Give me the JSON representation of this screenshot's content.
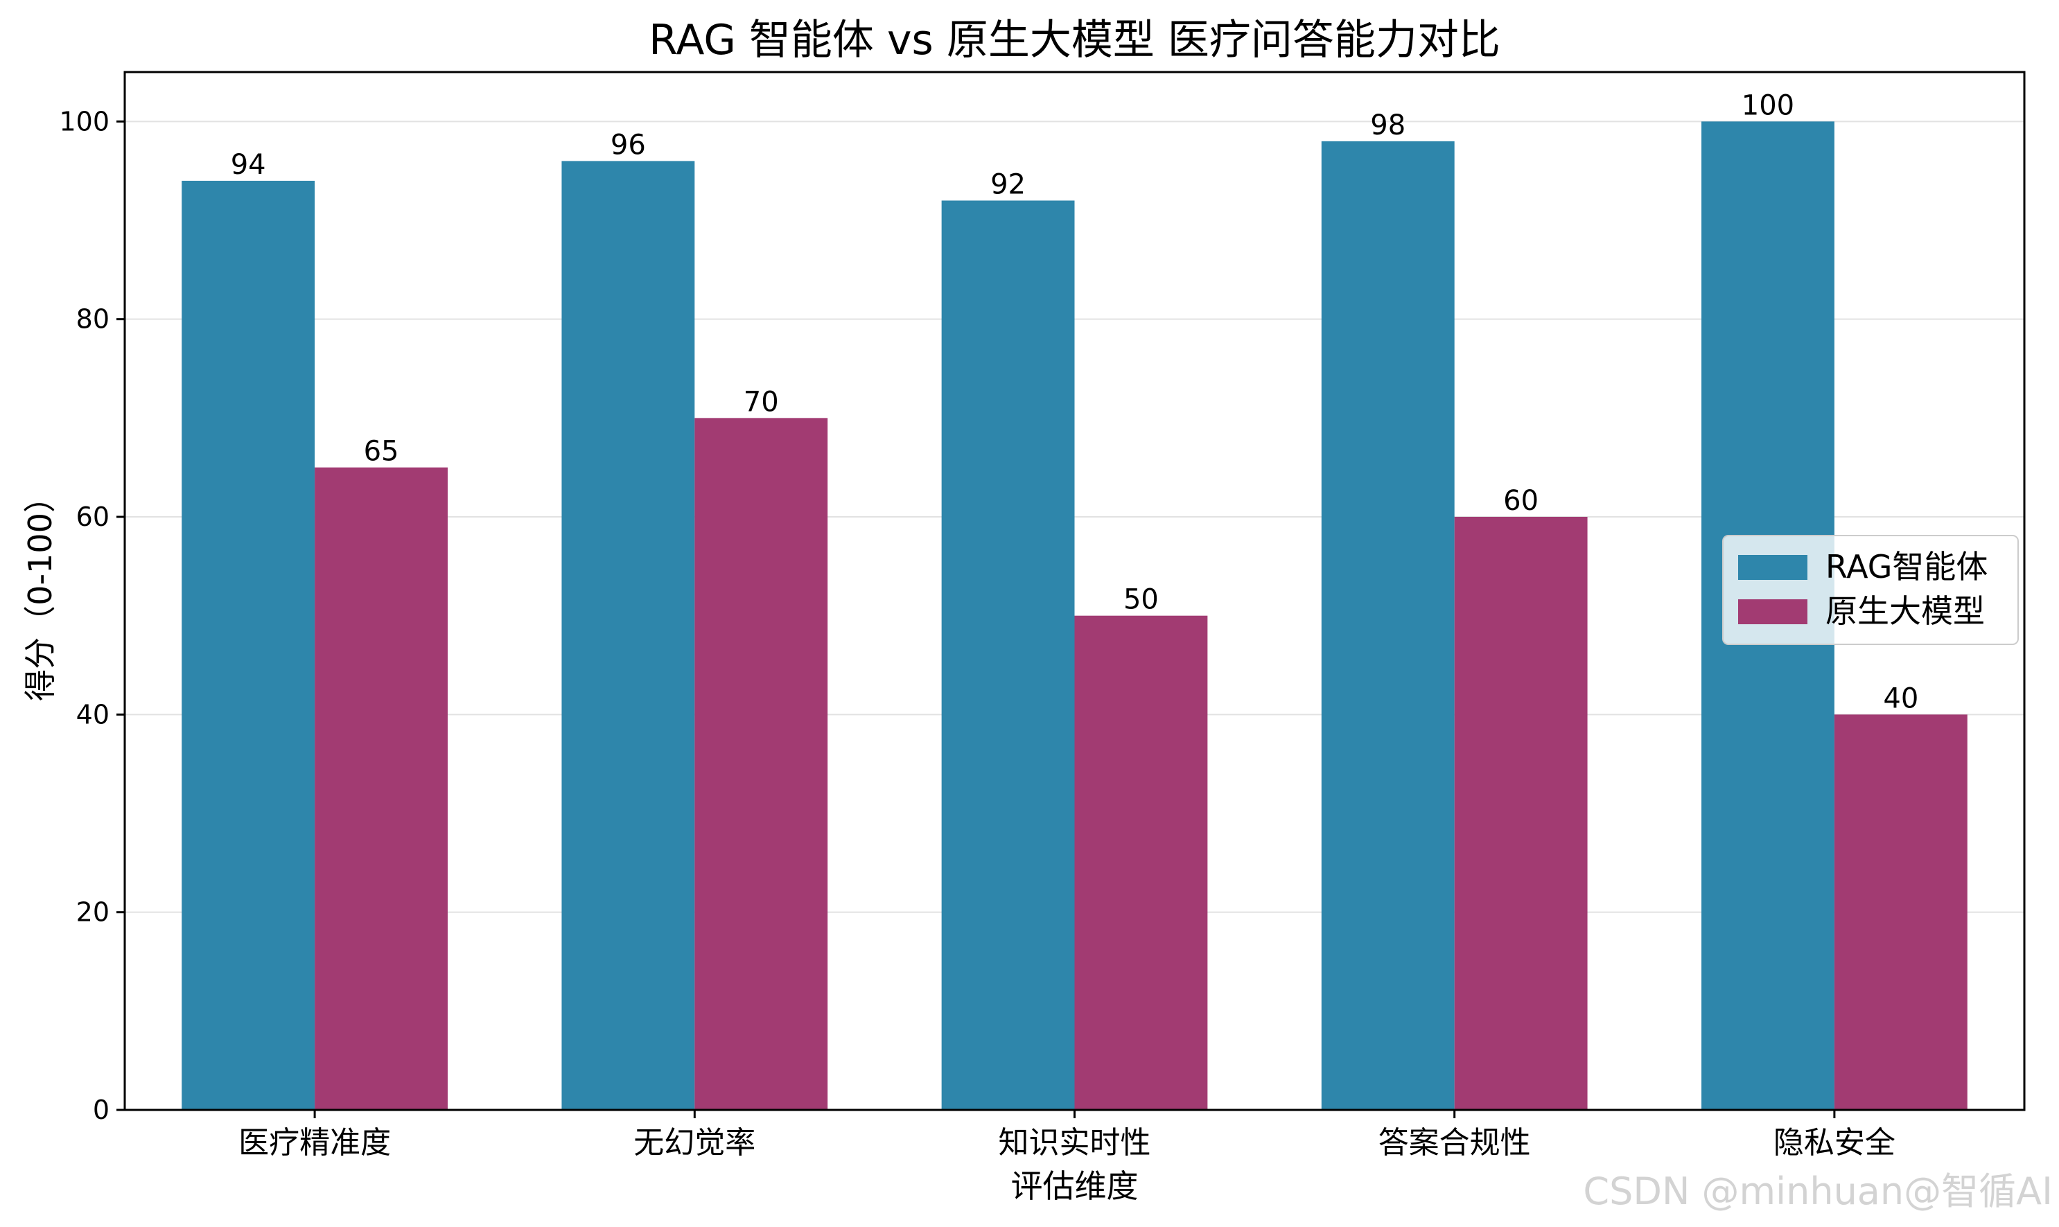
{
  "chart_data": {
    "type": "bar",
    "title": "RAG 智能体 vs 原生大模型 医疗问答能力对比",
    "xlabel": "评估维度",
    "ylabel": "得分（0-100）",
    "categories": [
      "医疗精准度",
      "无幻觉率",
      "知识实时性",
      "答案合规性",
      "隐私安全"
    ],
    "series": [
      {
        "name": "RAG智能体",
        "values": [
          94,
          96,
          92,
          98,
          100
        ],
        "color": "#2e86ab"
      },
      {
        "name": "原生大模型",
        "values": [
          65,
          70,
          50,
          60,
          40
        ],
        "color": "#a23b72"
      }
    ],
    "ylim": [
      0,
      105
    ],
    "yticks": [
      0,
      20,
      40,
      60,
      80,
      100
    ],
    "grid": "horizontal",
    "legend": "center-right"
  },
  "watermark": "CSDN @minhuan@智循AI"
}
